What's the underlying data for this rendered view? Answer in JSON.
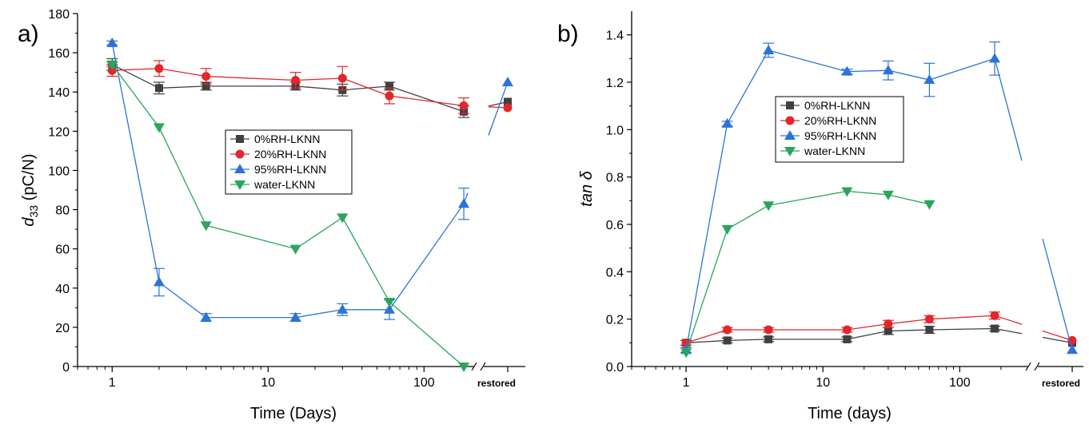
{
  "colors": {
    "0RH": "#404040",
    "20RH": "#e3262b",
    "95RH": "#2a73d9",
    "water": "#2aa55a"
  },
  "chart_data": [
    {
      "panel": "a)",
      "type": "line",
      "xlabel": "Time (Days)",
      "ylabel_main": "d",
      "ylabel_sub": "33",
      "ylabel_rest": " (pC/N)",
      "x_scale": "log",
      "x_range": [
        0.6,
        200
      ],
      "x_ticks": [
        "1",
        "10",
        "100"
      ],
      "extra_x_category": "restored",
      "ylim": [
        0,
        180
      ],
      "y_ticks": [
        "0",
        "20",
        "40",
        "60",
        "80",
        "100",
        "120",
        "140",
        "160",
        "180"
      ],
      "legend_position": "center",
      "series": [
        {
          "name": "0%RH-LKNN",
          "color_key": "0RH",
          "marker": "square",
          "x": [
            1,
            2,
            4,
            15,
            30,
            60,
            180,
            "restored"
          ],
          "y": [
            154,
            142,
            143,
            143,
            141,
            143,
            130,
            135
          ],
          "err": [
            3,
            3,
            2,
            2,
            3,
            2,
            3,
            0
          ]
        },
        {
          "name": "20%RH-LKNN",
          "color_key": "20RH",
          "marker": "circle",
          "x": [
            1,
            2,
            4,
            15,
            30,
            60,
            180,
            "restored"
          ],
          "y": [
            151,
            152,
            148,
            146,
            147,
            138,
            133,
            132
          ],
          "err": [
            3,
            4,
            4,
            4,
            6,
            4,
            4,
            0
          ]
        },
        {
          "name": "95%RH-LKNN",
          "color_key": "95RH",
          "marker": "triangle-up",
          "x": [
            1,
            2,
            4,
            15,
            30,
            60,
            180,
            "restored"
          ],
          "y": [
            165,
            43,
            25,
            25,
            29,
            29,
            83,
            145
          ],
          "err": [
            1,
            7,
            2,
            2,
            3,
            5,
            8,
            0
          ]
        },
        {
          "name": "water-LKNN",
          "color_key": "water",
          "marker": "triangle-down",
          "x": [
            1,
            2,
            4,
            15,
            30,
            60,
            180
          ],
          "y": [
            154,
            122,
            72,
            60,
            76,
            33,
            0
          ],
          "err": [
            1,
            0,
            0,
            0,
            0,
            0,
            0
          ]
        }
      ]
    },
    {
      "panel": "b)",
      "type": "line",
      "xlabel": "Time (days)",
      "ylabel_main": "tan δ",
      "ylabel_sub": "",
      "ylabel_rest": "",
      "x_scale": "log",
      "x_range": [
        0.4,
        300
      ],
      "x_ticks": [
        "1",
        "10",
        "100"
      ],
      "extra_x_category": "restored",
      "ylim": [
        0,
        1.5
      ],
      "y_ticks": [
        "0.0",
        "0.2",
        "0.4",
        "0.6",
        "0.8",
        "1.0",
        "1.2",
        "1.4"
      ],
      "legend_position": "upper-center",
      "series": [
        {
          "name": "0%RH-LKNN",
          "color_key": "0RH",
          "marker": "square",
          "x": [
            1,
            2,
            4,
            15,
            30,
            60,
            180,
            "restored"
          ],
          "y": [
            0.1,
            0.11,
            0.115,
            0.115,
            0.15,
            0.155,
            0.16,
            0.1
          ],
          "err": [
            0.01,
            0.01,
            0.01,
            0.01,
            0.015,
            0.015,
            0.01,
            0
          ]
        },
        {
          "name": "20%RH-LKNN",
          "color_key": "20RH",
          "marker": "circle",
          "x": [
            1,
            2,
            4,
            15,
            30,
            60,
            180,
            "restored"
          ],
          "y": [
            0.1,
            0.155,
            0.155,
            0.155,
            0.18,
            0.2,
            0.215,
            0.11
          ],
          "err": [
            0.01,
            0.01,
            0.01,
            0.01,
            0.015,
            0.015,
            0.015,
            0
          ]
        },
        {
          "name": "95%RH-LKNN",
          "color_key": "95RH",
          "marker": "triangle-up",
          "x": [
            1,
            2,
            4,
            15,
            30,
            60,
            180,
            "restored"
          ],
          "y": [
            0.07,
            1.025,
            1.335,
            1.245,
            1.25,
            1.21,
            1.3,
            0.07
          ],
          "err": [
            0.01,
            0.01,
            0.03,
            0.01,
            0.04,
            0.07,
            0.07,
            0
          ]
        },
        {
          "name": "water-LKNN",
          "color_key": "water",
          "marker": "triangle-down",
          "x": [
            1,
            2,
            4,
            15,
            30,
            60
          ],
          "y": [
            0.06,
            0.58,
            0.68,
            0.74,
            0.725,
            0.685
          ],
          "err": [
            0,
            0,
            0,
            0,
            0,
            0
          ]
        }
      ]
    }
  ]
}
